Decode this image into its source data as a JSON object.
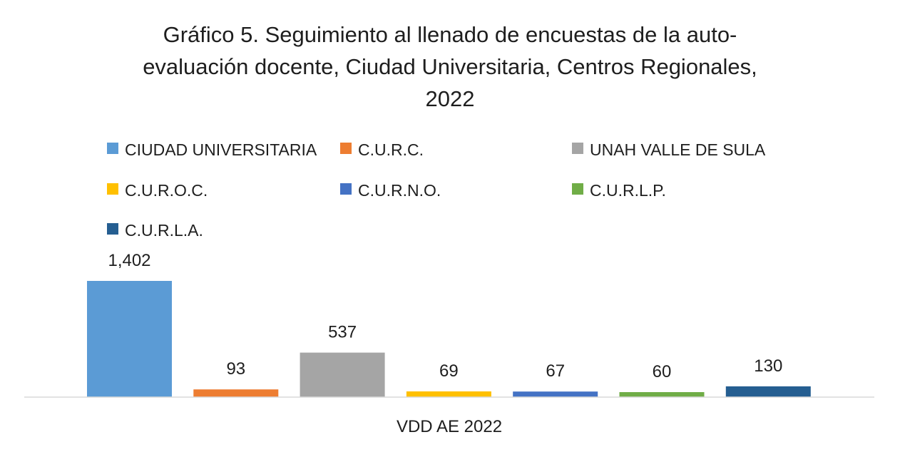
{
  "chart_data": {
    "type": "bar",
    "title_lines": [
      "Gráfico 5.  Seguimiento al llenado de encuestas de la auto-",
      "evaluación docente, Ciudad Universitaria, Centros Regionales,",
      "2022"
    ],
    "categories": [
      "VDD AE 2022"
    ],
    "series": [
      {
        "name": "CIUDAD UNIVERSITARIA",
        "values": [
          1402
        ],
        "label": "1,402",
        "color": "#5b9bd5"
      },
      {
        "name": "C.U.R.C.",
        "values": [
          93
        ],
        "label": "93",
        "color": "#ed7d31"
      },
      {
        "name": "UNAH VALLE DE SULA",
        "values": [
          537
        ],
        "label": "537",
        "color": "#a5a5a5"
      },
      {
        "name": "C.U.R.O.C.",
        "values": [
          69
        ],
        "label": "69",
        "color": "#ffc000"
      },
      {
        "name": "C.U.R.N.O.",
        "values": [
          67
        ],
        "label": "67",
        "color": "#4472c4"
      },
      {
        "name": "C.U.R.L.P.",
        "values": [
          60
        ],
        "label": "60",
        "color": "#70ad47"
      },
      {
        "name": "C.U.R.L.A.",
        "values": [
          130
        ],
        "label": "130",
        "color": "#255e91"
      }
    ],
    "ylim": [
      0,
      1402
    ],
    "grid": false,
    "legend_position": "top"
  }
}
